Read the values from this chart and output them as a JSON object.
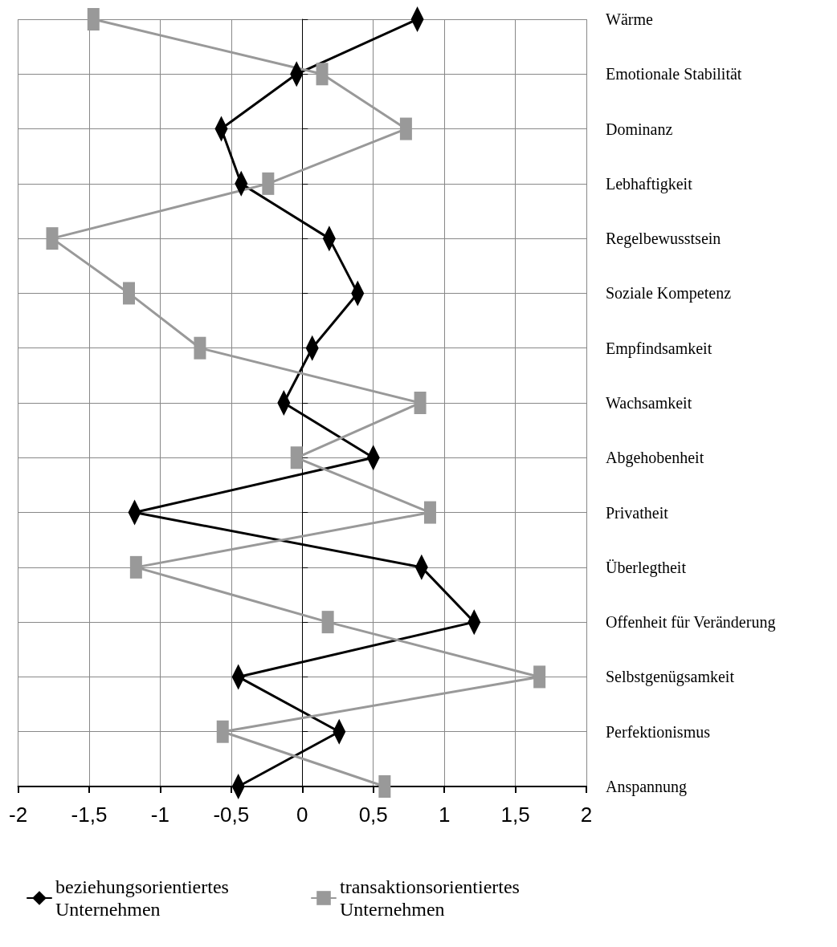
{
  "chart_data": {
    "type": "line",
    "orientation": "horizontal",
    "categories": [
      "Wärme",
      "Emotionale Stabilität",
      "Dominanz",
      "Lebhaftigkeit",
      "Regelbewusstsein",
      "Soziale Kompetenz",
      "Empfindsamkeit",
      "Wachsamkeit",
      "Abgehobenheit",
      "Privatheit",
      "Überlegtheit",
      "Offenheit für Veränderung",
      "Selbstgenügsamkeit",
      "Perfektionismus",
      "Anspannung"
    ],
    "series": [
      {
        "name": "beziehungsorientiertes Unternehmen",
        "color": "#000000",
        "marker": "diamond",
        "values": [
          0.81,
          -0.04,
          -0.57,
          -0.43,
          0.19,
          0.39,
          0.07,
          -0.13,
          0.5,
          -1.18,
          0.84,
          1.21,
          -0.45,
          0.26,
          -0.45
        ]
      },
      {
        "name": "transaktionsorientiertes Unternehmen",
        "color": "#999999",
        "marker": "square",
        "values": [
          -1.47,
          0.14,
          0.73,
          -0.24,
          -1.76,
          -1.22,
          -0.72,
          0.83,
          -0.04,
          0.9,
          -1.17,
          0.18,
          1.67,
          -0.56,
          0.58
        ]
      }
    ],
    "xlim": [
      -2,
      2
    ],
    "xticks": [
      -2,
      {
        "value": -1.5,
        "label": "-1,5"
      },
      -1,
      {
        "value": -0.5,
        "label": "-0,5"
      },
      0,
      {
        "value": 0.5,
        "label": "0,5"
      },
      1,
      {
        "value": 1.5,
        "label": "1,5"
      },
      2
    ],
    "grid": true,
    "legend": "bottom left",
    "line_style": "solid"
  }
}
